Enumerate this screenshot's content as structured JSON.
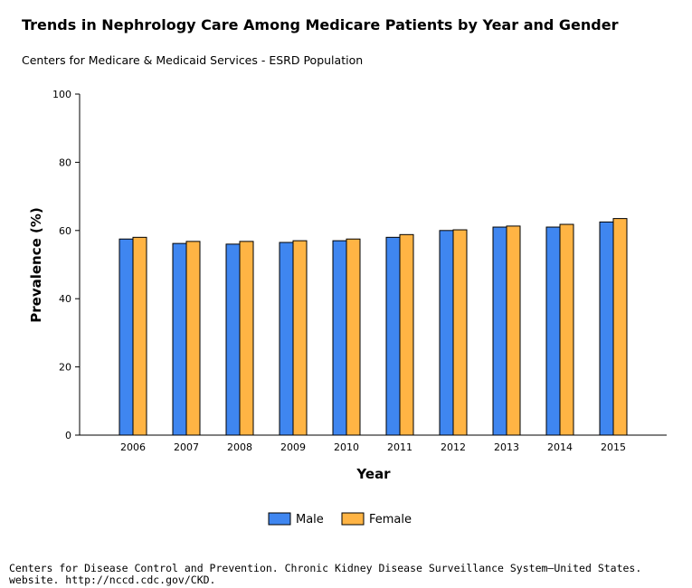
{
  "chart_data": {
    "type": "bar",
    "title": "Trends in Nephrology Care Among Medicare Patients by Year and Gender",
    "subtitle": "Centers for Medicare & Medicaid Services - ESRD Population",
    "xlabel": "Year",
    "ylabel": "Prevalence (%)",
    "ylim": [
      0,
      100
    ],
    "yticks": [
      0,
      20,
      40,
      60,
      80,
      100
    ],
    "categories": [
      "2006",
      "2007",
      "2008",
      "2009",
      "2010",
      "2011",
      "2012",
      "2013",
      "2014",
      "2015"
    ],
    "series": [
      {
        "name": "Male",
        "color": "#3f86f0",
        "values": [
          57.5,
          56.2,
          56.0,
          56.5,
          57.0,
          58.0,
          60.0,
          61.0,
          61.0,
          62.5
        ]
      },
      {
        "name": "Female",
        "color": "#ffb444",
        "values": [
          58.0,
          56.8,
          56.8,
          57.0,
          57.5,
          58.8,
          60.2,
          61.3,
          61.8,
          63.5
        ]
      }
    ],
    "grid": false,
    "legend_position": "bottom"
  },
  "source": {
    "line1": "Centers for Disease Control and Prevention. Chronic Kidney Disease Surveillance System—United States.",
    "line2": "website. http://nccd.cdc.gov/CKD."
  }
}
